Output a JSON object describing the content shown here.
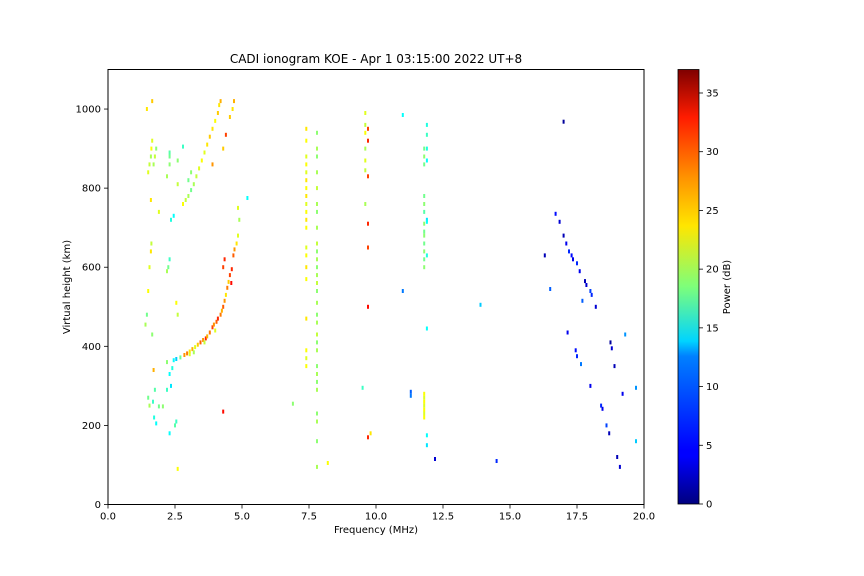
{
  "chart_data": {
    "type": "scatter",
    "title": "CADI ionogram KOE - Apr  1 03:15:00 2022 UT+8",
    "xlabel": "Frequency (MHz)",
    "ylabel": "Virtual height (km)",
    "xlim": [
      0,
      20
    ],
    "ylim": [
      0,
      1100
    ],
    "x_ticks": [
      0,
      2.5,
      5,
      7.5,
      10,
      12.5,
      15,
      17.5,
      20
    ],
    "x_tick_labels": [
      "0.0",
      "2.5",
      "5.0",
      "7.5",
      "10.0",
      "12.5",
      "15.0",
      "17.5",
      "20.0"
    ],
    "y_ticks": [
      0,
      200,
      400,
      600,
      800,
      1000
    ],
    "y_tick_labels": [
      "0",
      "200",
      "400",
      "600",
      "800",
      "1000"
    ],
    "grid": false,
    "colorbar": {
      "label": "Power (dB)",
      "range": [
        0,
        37
      ],
      "ticks": [
        0,
        5,
        10,
        15,
        20,
        25,
        30,
        35
      ],
      "tick_labels": [
        "0",
        "5",
        "10",
        "15",
        "20",
        "25",
        "30",
        "35"
      ],
      "colormap": "jet"
    },
    "points": [
      [
        1.4,
        455,
        20
      ],
      [
        1.45,
        480,
        18
      ],
      [
        1.5,
        540,
        23
      ],
      [
        1.55,
        600,
        22
      ],
      [
        1.6,
        640,
        24
      ],
      [
        1.62,
        660,
        21
      ],
      [
        1.65,
        430,
        19
      ],
      [
        1.7,
        340,
        26
      ],
      [
        1.75,
        290,
        17
      ],
      [
        1.68,
        260,
        16
      ],
      [
        1.72,
        220,
        15
      ],
      [
        1.8,
        205,
        14
      ],
      [
        1.9,
        248,
        18
      ],
      [
        2.05,
        248,
        19
      ],
      [
        2.5,
        200,
        17
      ],
      [
        2.55,
        210,
        16
      ],
      [
        2.3,
        180,
        14
      ],
      [
        2.6,
        90,
        23
      ],
      [
        1.55,
        250,
        20
      ],
      [
        1.5,
        270,
        18
      ],
      [
        2.2,
        290,
        16
      ],
      [
        2.35,
        300,
        13
      ],
      [
        2.3,
        330,
        14
      ],
      [
        2.4,
        345,
        15
      ],
      [
        2.2,
        360,
        19
      ],
      [
        2.45,
        365,
        14
      ],
      [
        2.55,
        368,
        12
      ],
      [
        2.7,
        372,
        18
      ],
      [
        2.85,
        378,
        27
      ],
      [
        2.95,
        382,
        28
      ],
      [
        3.05,
        387,
        24
      ],
      [
        3.15,
        393,
        26
      ],
      [
        3.25,
        398,
        22
      ],
      [
        3.35,
        404,
        25
      ],
      [
        3.45,
        410,
        29
      ],
      [
        3.55,
        416,
        27
      ],
      [
        3.65,
        420,
        31
      ],
      [
        3.7,
        425,
        26
      ],
      [
        3.8,
        435,
        28
      ],
      [
        3.9,
        448,
        30
      ],
      [
        3.95,
        455,
        27
      ],
      [
        4.05,
        462,
        29
      ],
      [
        4.1,
        470,
        31
      ],
      [
        4.2,
        480,
        28
      ],
      [
        4.25,
        490,
        26
      ],
      [
        4.3,
        500,
        29
      ],
      [
        4.35,
        515,
        27
      ],
      [
        4.4,
        530,
        24
      ],
      [
        4.45,
        548,
        28
      ],
      [
        4.5,
        563,
        25
      ],
      [
        4.3,
        600,
        30
      ],
      [
        4.35,
        620,
        31
      ],
      [
        4.55,
        580,
        30
      ],
      [
        4.6,
        560,
        32
      ],
      [
        4.62,
        595,
        31
      ],
      [
        4.68,
        630,
        29
      ],
      [
        4.72,
        645,
        27
      ],
      [
        4.8,
        660,
        24
      ],
      [
        4.85,
        680,
        22
      ],
      [
        4.3,
        235,
        32
      ],
      [
        3.05,
        380,
        22
      ],
      [
        3.2,
        385,
        20
      ],
      [
        3.6,
        410,
        21
      ],
      [
        4.0,
        440,
        22
      ],
      [
        2.6,
        480,
        21
      ],
      [
        2.55,
        510,
        23
      ],
      [
        2.2,
        590,
        20
      ],
      [
        2.3,
        620,
        16
      ],
      [
        2.25,
        600,
        18
      ],
      [
        1.5,
        840,
        22
      ],
      [
        1.55,
        860,
        21
      ],
      [
        1.6,
        880,
        20
      ],
      [
        1.62,
        900,
        23
      ],
      [
        1.65,
        920,
        22
      ],
      [
        1.7,
        860,
        20
      ],
      [
        1.75,
        880,
        21
      ],
      [
        1.8,
        900,
        19
      ],
      [
        1.45,
        1000,
        24
      ],
      [
        1.65,
        1020,
        25
      ],
      [
        1.6,
        770,
        24
      ],
      [
        1.9,
        740,
        22
      ],
      [
        2.2,
        830,
        20
      ],
      [
        2.3,
        860,
        19
      ],
      [
        2.3,
        880,
        18
      ],
      [
        2.3,
        890,
        17
      ],
      [
        2.35,
        720,
        15
      ],
      [
        2.45,
        730,
        14
      ],
      [
        2.6,
        870,
        19
      ],
      [
        2.8,
        905,
        16
      ],
      [
        2.6,
        810,
        21
      ],
      [
        2.8,
        760,
        23
      ],
      [
        2.9,
        770,
        21
      ],
      [
        3.0,
        780,
        20
      ],
      [
        3.1,
        795,
        18
      ],
      [
        3.2,
        810,
        20
      ],
      [
        3.3,
        830,
        21
      ],
      [
        3.4,
        850,
        22
      ],
      [
        3.5,
        870,
        23
      ],
      [
        3.6,
        890,
        22
      ],
      [
        3.7,
        910,
        24
      ],
      [
        3.8,
        930,
        25
      ],
      [
        3.9,
        950,
        24
      ],
      [
        4.0,
        970,
        23
      ],
      [
        4.1,
        990,
        25
      ],
      [
        4.15,
        1010,
        24
      ],
      [
        4.2,
        1020,
        26
      ],
      [
        4.4,
        935,
        30
      ],
      [
        4.55,
        980,
        25
      ],
      [
        4.65,
        1000,
        24
      ],
      [
        4.7,
        1020,
        26
      ],
      [
        3.0,
        820,
        18
      ],
      [
        3.1,
        840,
        19
      ],
      [
        3.9,
        860,
        27
      ],
      [
        4.3,
        900,
        25
      ],
      [
        4.85,
        750,
        22
      ],
      [
        4.9,
        720,
        20
      ],
      [
        5.2,
        775,
        14
      ],
      [
        6.9,
        255,
        19
      ],
      [
        7.4,
        950,
        24
      ],
      [
        7.4,
        920,
        23
      ],
      [
        7.4,
        880,
        22
      ],
      [
        7.4,
        860,
        23
      ],
      [
        7.4,
        840,
        22
      ],
      [
        7.4,
        820,
        24
      ],
      [
        7.4,
        800,
        23
      ],
      [
        7.4,
        780,
        24
      ],
      [
        7.4,
        760,
        22
      ],
      [
        7.4,
        740,
        23
      ],
      [
        7.4,
        720,
        24
      ],
      [
        7.4,
        700,
        23
      ],
      [
        7.4,
        650,
        22
      ],
      [
        7.4,
        630,
        23
      ],
      [
        7.4,
        600,
        24
      ],
      [
        7.4,
        570,
        23
      ],
      [
        7.4,
        470,
        24
      ],
      [
        7.4,
        390,
        23
      ],
      [
        7.4,
        370,
        22
      ],
      [
        7.4,
        350,
        23
      ],
      [
        7.8,
        940,
        19
      ],
      [
        7.8,
        900,
        20
      ],
      [
        7.8,
        880,
        19
      ],
      [
        7.8,
        840,
        20
      ],
      [
        7.8,
        800,
        21
      ],
      [
        7.8,
        760,
        20
      ],
      [
        7.8,
        740,
        19
      ],
      [
        7.8,
        700,
        20
      ],
      [
        7.8,
        660,
        21
      ],
      [
        7.8,
        640,
        19
      ],
      [
        7.8,
        620,
        20
      ],
      [
        7.8,
        600,
        19
      ],
      [
        7.8,
        580,
        20
      ],
      [
        7.8,
        560,
        21
      ],
      [
        7.8,
        540,
        19
      ],
      [
        7.8,
        510,
        20
      ],
      [
        7.8,
        480,
        19
      ],
      [
        7.8,
        460,
        20
      ],
      [
        7.8,
        430,
        21
      ],
      [
        7.8,
        410,
        19
      ],
      [
        7.8,
        390,
        20
      ],
      [
        7.8,
        350,
        19
      ],
      [
        7.8,
        330,
        20
      ],
      [
        7.8,
        310,
        19
      ],
      [
        7.8,
        290,
        20
      ],
      [
        7.8,
        230,
        19
      ],
      [
        7.8,
        210,
        20
      ],
      [
        7.8,
        160,
        19
      ],
      [
        7.8,
        95,
        20
      ],
      [
        8.2,
        105,
        23
      ],
      [
        9.5,
        295,
        16
      ],
      [
        9.6,
        990,
        22
      ],
      [
        9.6,
        960,
        21
      ],
      [
        9.6,
        940,
        23
      ],
      [
        9.6,
        900,
        20
      ],
      [
        9.6,
        870,
        22
      ],
      [
        9.6,
        845,
        21
      ],
      [
        9.6,
        760,
        20
      ],
      [
        9.7,
        950,
        30
      ],
      [
        9.7,
        920,
        31
      ],
      [
        9.7,
        830,
        30
      ],
      [
        9.7,
        710,
        31
      ],
      [
        9.7,
        650,
        30
      ],
      [
        9.7,
        500,
        32
      ],
      [
        9.7,
        170,
        31
      ],
      [
        9.8,
        180,
        24
      ],
      [
        11.0,
        985,
        14
      ],
      [
        11.0,
        540,
        9
      ],
      [
        11.3,
        285,
        8
      ],
      [
        11.3,
        275,
        9
      ],
      [
        11.8,
        900,
        18
      ],
      [
        11.8,
        880,
        19
      ],
      [
        11.8,
        860,
        18
      ],
      [
        11.8,
        780,
        18
      ],
      [
        11.8,
        760,
        19
      ],
      [
        11.8,
        740,
        17
      ],
      [
        11.8,
        710,
        19
      ],
      [
        11.8,
        690,
        18
      ],
      [
        11.8,
        680,
        19
      ],
      [
        11.8,
        660,
        18
      ],
      [
        11.8,
        640,
        19
      ],
      [
        11.8,
        620,
        18
      ],
      [
        11.8,
        600,
        19
      ],
      [
        11.8,
        280,
        23
      ],
      [
        11.8,
        270,
        22
      ],
      [
        11.8,
        260,
        23
      ],
      [
        11.8,
        250,
        22
      ],
      [
        11.8,
        240,
        23
      ],
      [
        11.8,
        230,
        22
      ],
      [
        11.8,
        220,
        23
      ],
      [
        11.9,
        960,
        15
      ],
      [
        11.9,
        935,
        16
      ],
      [
        11.9,
        900,
        15
      ],
      [
        11.9,
        870,
        14
      ],
      [
        11.9,
        720,
        13
      ],
      [
        11.9,
        715,
        14
      ],
      [
        11.9,
        630,
        15
      ],
      [
        11.9,
        445,
        14
      ],
      [
        11.9,
        175,
        14
      ],
      [
        11.9,
        150,
        13
      ],
      [
        12.2,
        115,
        3
      ],
      [
        13.9,
        505,
        12
      ],
      [
        14.5,
        110,
        6
      ],
      [
        16.3,
        630,
        2
      ],
      [
        16.5,
        545,
        8
      ],
      [
        16.7,
        735,
        5
      ],
      [
        16.85,
        715,
        3
      ],
      [
        17.0,
        968,
        1
      ],
      [
        17.0,
        680,
        2
      ],
      [
        17.1,
        660,
        4
      ],
      [
        17.2,
        640,
        6
      ],
      [
        17.3,
        630,
        5
      ],
      [
        17.35,
        620,
        4
      ],
      [
        17.5,
        610,
        6
      ],
      [
        17.6,
        590,
        4
      ],
      [
        17.8,
        565,
        2
      ],
      [
        17.85,
        555,
        3
      ],
      [
        18.0,
        540,
        7
      ],
      [
        18.05,
        530,
        6
      ],
      [
        17.7,
        515,
        8
      ],
      [
        18.2,
        500,
        3
      ],
      [
        17.15,
        435,
        4
      ],
      [
        17.45,
        390,
        5
      ],
      [
        17.5,
        375,
        6
      ],
      [
        17.65,
        355,
        9
      ],
      [
        18.0,
        300,
        4
      ],
      [
        18.4,
        250,
        6
      ],
      [
        18.45,
        242,
        4
      ],
      [
        18.6,
        200,
        7
      ],
      [
        18.7,
        180,
        2
      ],
      [
        18.75,
        410,
        1
      ],
      [
        18.8,
        395,
        3
      ],
      [
        18.9,
        350,
        2
      ],
      [
        19.2,
        280,
        4
      ],
      [
        19.3,
        430,
        10
      ],
      [
        19.0,
        120,
        2
      ],
      [
        19.1,
        95,
        3
      ],
      [
        19.7,
        295,
        10
      ],
      [
        19.7,
        160,
        12
      ]
    ]
  }
}
